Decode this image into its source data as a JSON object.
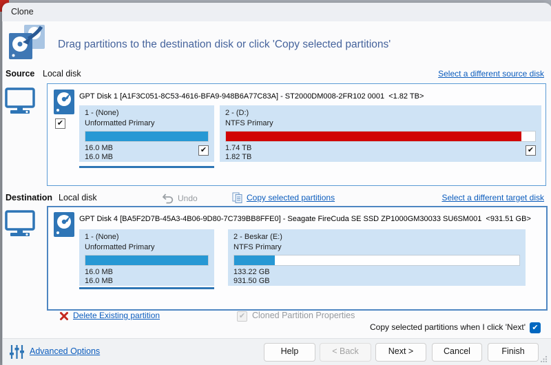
{
  "window": {
    "title": "Clone"
  },
  "header": {
    "instruction": "Drag partitions to the destination disk or click 'Copy selected partitions'"
  },
  "source": {
    "label": "Source",
    "disk_kind": "Local disk",
    "select_link": "Select a different source disk",
    "disk": {
      "title": "GPT Disk 1 [A1F3C051-8C53-4616-BFA9-948B6A77C83A] - ST2000DM008-2FR102 0001  <1.82 TB>",
      "selected": true,
      "partitions": [
        {
          "name": "1 - (None)",
          "fs": "Unformatted Primary",
          "used": "16.0 MB",
          "total": "16.0 MB",
          "fill_percent": 100,
          "bar_color": "#2798d4",
          "selected": true
        },
        {
          "name": "2 - (D:)",
          "fs": "NTFS Primary",
          "used": "1.74 TB",
          "total": "1.82 TB",
          "fill_percent": 95.6,
          "bar_color": "#d10404",
          "selected": true
        }
      ]
    }
  },
  "destination": {
    "label": "Destination",
    "disk_kind": "Local disk",
    "undo_label": "Undo",
    "copy_link": "Copy selected partitions",
    "select_link": "Select a different target disk",
    "disk": {
      "title": "GPT Disk 4 [BA5F2D7B-45A3-4B06-9D80-7C739BB8FFE0] - Seagate FireCuda SE SSD ZP1000GM30033 SU6SM001  <931.51 GB>",
      "partitions": [
        {
          "name": "1 - (None)",
          "fs": "Unformatted Primary",
          "used": "16.0 MB",
          "total": "16.0 MB",
          "fill_percent": 100,
          "bar_color": "#2798d4"
        },
        {
          "name": "2 - Beskar (E:)",
          "fs": "NTFS Primary",
          "used": "133.22 GB",
          "total": "931.50 GB",
          "fill_percent": 14.3,
          "bar_color": "#2798d4"
        }
      ]
    },
    "delete_link": "Delete Existing partition",
    "cloned_properties_label": "Cloned Partition Properties"
  },
  "options": {
    "copy_on_next_label": "Copy selected partitions when I click 'Next'",
    "copy_on_next_checked": true,
    "advanced_link": "Advanced Options"
  },
  "buttons": {
    "help": "Help",
    "back": "< Back",
    "back_enabled": false,
    "next": "Next >",
    "cancel": "Cancel",
    "finish": "Finish"
  },
  "colors": {
    "accent_link": "#0b5cbd",
    "bar_blue": "#2798d4",
    "bar_red": "#d10404",
    "checkbox_blue": "#0067c0",
    "box_border_blue": "#5b9bd5",
    "partition_tile_bg": "#cfe3f5"
  },
  "icons": {
    "undo_icon": "curved-left-arrow",
    "copy_icon": "two-pages",
    "delete_x_icon": "red-cross",
    "check_glyph": "✔",
    "clone_icon": "two-overlapping-disks-with-arrow",
    "computer_icon": "monitor-outline",
    "hard_disk_icon": "blue-disk-platter",
    "sliders_icon": "vertical-sliders"
  }
}
